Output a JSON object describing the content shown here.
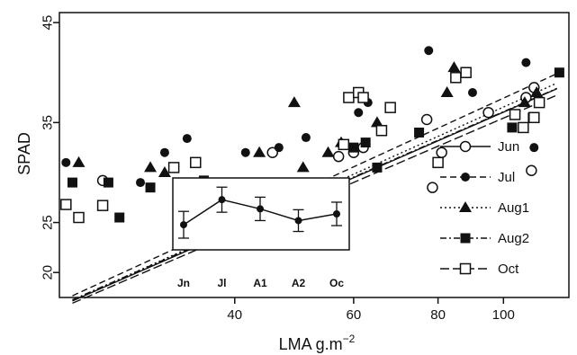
{
  "chart_data": [
    {
      "type": "scatter",
      "xlabel": "LMA g.m",
      "xlabel_superscript": "−2",
      "ylabel": "SPAD",
      "x_scale": "log",
      "xlim": [
        22,
        125
      ],
      "ylim": [
        17.5,
        46
      ],
      "x_ticks": [
        40,
        60,
        80,
        100
      ],
      "y_ticks": [
        20,
        25,
        35,
        45
      ],
      "legend_position": "right",
      "grid": false,
      "series": [
        {
          "name": "Jun",
          "marker": "open-circle",
          "line_style": "solid",
          "fit": {
            "a": -23.14,
            "b": 12.85
          },
          "points": [
            [
              25.5,
              29.2
            ],
            [
              45.5,
              32.0
            ],
            [
              57.0,
              31.6
            ],
            [
              60.0,
              32.0
            ],
            [
              62.0,
              32.5
            ],
            [
              77.0,
              35.3
            ],
            [
              78.5,
              28.5
            ],
            [
              81.0,
              32.0
            ],
            [
              95.0,
              36.0
            ],
            [
              108.0,
              37.5
            ],
            [
              110.0,
              30.2
            ],
            [
              111.0,
              38.5
            ]
          ]
        },
        {
          "name": "Jul",
          "marker": "filled-circle",
          "line_style": "dashed",
          "fit": {
            "a": -24.5,
            "b": 13.45
          },
          "points": [
            [
              22.5,
              31.0
            ],
            [
              29.0,
              29.0
            ],
            [
              31.5,
              32.0
            ],
            [
              34.0,
              33.4
            ],
            [
              41.5,
              32.0
            ],
            [
              46.5,
              32.5
            ],
            [
              51.0,
              33.5
            ],
            [
              61.0,
              36.0
            ],
            [
              63.0,
              37.0
            ],
            [
              77.5,
              42.2
            ],
            [
              90.0,
              38.0
            ],
            [
              108.0,
              41.0
            ],
            [
              111.0,
              32.5
            ]
          ]
        },
        {
          "name": "Aug1",
          "marker": "filled-triangle",
          "line_style": "dotted",
          "fit": {
            "a": -24.01,
            "b": 13.15
          },
          "points": [
            [
              23.5,
              31.0
            ],
            [
              30.0,
              30.5
            ],
            [
              31.5,
              30.0
            ],
            [
              43.5,
              32.0
            ],
            [
              49.0,
              37.0
            ],
            [
              50.5,
              30.5
            ],
            [
              55.0,
              32.0
            ],
            [
              57.5,
              33.0
            ],
            [
              65.0,
              35.0
            ],
            [
              82.5,
              38.0
            ],
            [
              84.5,
              40.5
            ],
            [
              107.5,
              37.0
            ],
            [
              112.0,
              38.0
            ]
          ]
        },
        {
          "name": "Aug2",
          "marker": "filled-square",
          "line_style": "dashdot",
          "fit": {
            "a": -22.86,
            "b": 12.8
          },
          "points": [
            [
              23.0,
              29.0
            ],
            [
              26.0,
              29.0
            ],
            [
              27.0,
              25.5
            ],
            [
              30.0,
              28.5
            ],
            [
              33.0,
              28.5
            ],
            [
              36.0,
              29.2
            ],
            [
              60.0,
              32.5
            ],
            [
              62.5,
              33.0
            ],
            [
              65.0,
              30.5
            ],
            [
              75.0,
              34.0
            ],
            [
              103.0,
              34.5
            ],
            [
              110.5,
              35.5
            ],
            [
              121.0,
              40.0
            ]
          ]
        },
        {
          "name": "Oct",
          "marker": "open-square",
          "line_style": "longdash",
          "fit": {
            "a": -22.58,
            "b": 12.6
          },
          "points": [
            [
              22.5,
              26.8
            ],
            [
              23.5,
              25.5
            ],
            [
              25.5,
              26.7
            ],
            [
              32.5,
              30.5
            ],
            [
              35.0,
              31.0
            ],
            [
              46.5,
              27.5
            ],
            [
              58.0,
              32.8
            ],
            [
              59.0,
              37.5
            ],
            [
              61.0,
              38.0
            ],
            [
              62.0,
              37.5
            ],
            [
              66.0,
              34.2
            ],
            [
              68.0,
              36.5
            ],
            [
              80.0,
              31.0
            ],
            [
              85.0,
              39.5
            ],
            [
              88.0,
              40.0
            ],
            [
              104.0,
              35.8
            ],
            [
              107.0,
              34.5
            ],
            [
              111.0,
              35.5
            ],
            [
              113.0,
              37.0
            ]
          ]
        }
      ]
    },
    {
      "type": "line",
      "categories": [
        "Jn",
        "Jl",
        "A1",
        "A2",
        "Oc"
      ],
      "values": [
        3.0,
        6.0,
        4.9,
        3.5,
        4.3
      ],
      "error": [
        1.6,
        1.5,
        1.4,
        1.3,
        1.4
      ],
      "ylim": [
        0,
        8.6
      ]
    }
  ]
}
